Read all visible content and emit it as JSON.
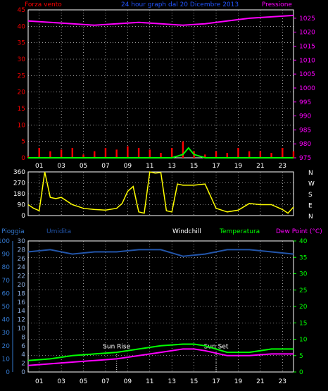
{
  "header": {
    "left_label": "Forza vento",
    "center_label": "24 hour graph dal 20 Dicembre 2013",
    "right_label": "Pressione"
  },
  "x_ticks": [
    "01",
    "03",
    "05",
    "07",
    "09",
    "11",
    "13",
    "15",
    "17",
    "19",
    "21",
    "23"
  ],
  "colors": {
    "wind": "#ff0000",
    "gust": "#00ff00",
    "pressure": "#ff00ff",
    "direction": "#ffff00",
    "humidity": "#2255aa",
    "temperature": "#00ff00",
    "dewpoint": "#ff00ff",
    "rain_axis": "#3377cc",
    "left_axis_red": "#ff0000",
    "grid": "#ffffff"
  },
  "chart_data": [
    {
      "type": "line",
      "name_hint": "wind-pressure",
      "ylim_left": [
        0,
        45
      ],
      "yticks_left": [
        0,
        5,
        10,
        15,
        20,
        25,
        30,
        35,
        40,
        45
      ],
      "ylim_right": [
        975,
        1028
      ],
      "yticks_right": [
        975,
        980,
        985,
        990,
        995,
        1000,
        1005,
        1010,
        1015,
        1020,
        1025
      ],
      "series": [
        {
          "key": "pressure",
          "axis": "right",
          "x": [
            0,
            2,
            4,
            6,
            8,
            10,
            12,
            14,
            16,
            18,
            20,
            22,
            24
          ],
          "values": [
            1024,
            1023.5,
            1023,
            1022.5,
            1023,
            1023.5,
            1023,
            1022.5,
            1023,
            1024,
            1025,
            1025.5,
            1026
          ]
        },
        {
          "key": "wind",
          "axis": "left",
          "x": [
            0,
            1,
            2,
            3,
            4,
            5,
            6,
            7,
            8,
            9,
            10,
            11,
            12,
            13,
            14,
            15,
            16,
            17,
            18,
            19,
            20,
            21,
            22,
            23,
            24
          ],
          "values": [
            0.5,
            3,
            2,
            2.5,
            3,
            1,
            2,
            3,
            2.5,
            3.5,
            3,
            2.5,
            1.5,
            3,
            5,
            2,
            1,
            2,
            1.5,
            3,
            2,
            2,
            1.5,
            3,
            2
          ]
        },
        {
          "key": "gust",
          "axis": "left",
          "x": [
            0,
            13,
            14,
            14.5,
            15,
            16,
            24
          ],
          "values": [
            0,
            0,
            1,
            3,
            1,
            0,
            0
          ]
        }
      ]
    },
    {
      "type": "line",
      "name_hint": "wind-direction",
      "ylim": [
        0,
        360
      ],
      "yticks": [
        0,
        90,
        180,
        270,
        360
      ],
      "right_labels": [
        "N",
        "W",
        "S",
        "E",
        "N"
      ],
      "series": [
        {
          "key": "direction",
          "x": [
            0,
            0.5,
            1,
            1.5,
            2,
            2.5,
            3,
            4,
            5,
            6,
            7,
            8,
            8.5,
            9,
            9.5,
            10,
            10.5,
            11,
            11.5,
            12,
            12.5,
            13,
            13.5,
            14,
            15,
            16,
            17,
            18,
            19,
            20,
            21,
            22,
            23,
            23.5,
            24
          ],
          "values": [
            90,
            60,
            40,
            360,
            150,
            140,
            150,
            90,
            60,
            50,
            45,
            60,
            100,
            200,
            240,
            30,
            20,
            360,
            350,
            355,
            40,
            30,
            260,
            250,
            250,
            260,
            60,
            30,
            45,
            100,
            90,
            90,
            50,
            20,
            70
          ]
        }
      ]
    },
    {
      "type": "line",
      "name_hint": "humidity-temperature",
      "left_label": "Pioggia",
      "left2_label": "Umidita",
      "center_label": "Windchill",
      "center2_label": "Temperatura",
      "right_label": "Dew Point (°C)",
      "ylim_left": [
        0,
        100
      ],
      "yticks_left": [
        0,
        10,
        20,
        30,
        40,
        50,
        60,
        70,
        80,
        90,
        100
      ],
      "ylim_left2": [
        0,
        30
      ],
      "yticks_left2": [
        0,
        2,
        4,
        6,
        8,
        10,
        12,
        14,
        16,
        18,
        20,
        22,
        24,
        26,
        28,
        30
      ],
      "ylim_right": [
        0,
        40
      ],
      "yticks_right": [
        0,
        5,
        10,
        15,
        20,
        25,
        30,
        35,
        40
      ],
      "annotations": [
        {
          "text": "Sun Rise",
          "x": 8
        },
        {
          "text": "Sun Set",
          "x": 17
        }
      ],
      "series": [
        {
          "key": "humidity",
          "axis": "left2",
          "x": [
            0,
            2,
            4,
            6,
            8,
            10,
            12,
            14,
            16,
            18,
            20,
            22,
            24
          ],
          "values": [
            27.5,
            28,
            27,
            27.5,
            27.5,
            28,
            28,
            26.5,
            27,
            28,
            28,
            27.5,
            27
          ]
        },
        {
          "key": "temperature",
          "axis": "right",
          "x": [
            0,
            2,
            4,
            6,
            8,
            10,
            12,
            14,
            15,
            16,
            18,
            20,
            22,
            24
          ],
          "values": [
            3.5,
            4,
            5,
            5.5,
            6,
            7,
            8,
            8.5,
            8.5,
            8,
            6,
            6,
            7,
            7
          ]
        },
        {
          "key": "dewpoint",
          "axis": "right",
          "x": [
            0,
            2,
            4,
            6,
            8,
            10,
            12,
            14,
            15,
            16,
            18,
            20,
            22,
            24
          ],
          "values": [
            2,
            2.5,
            3,
            3.5,
            4,
            5,
            6,
            7,
            7,
            6.5,
            5,
            5,
            5.5,
            5.5
          ]
        }
      ]
    }
  ]
}
